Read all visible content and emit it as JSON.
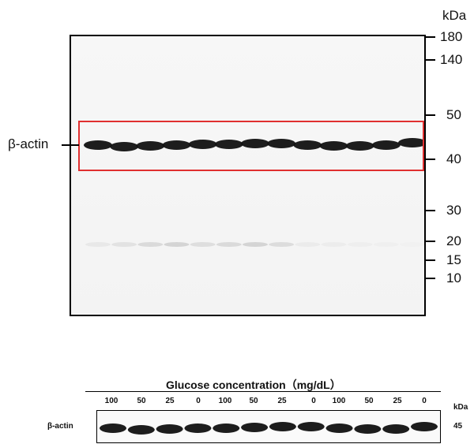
{
  "top_blot": {
    "unit": "kDa",
    "markers": [
      "180",
      "140",
      "50",
      "40",
      "30",
      "20",
      "15",
      "10"
    ],
    "target_label": "β-actin",
    "highlight_color": "#e03030"
  },
  "bottom_blot": {
    "title": "Glucose concentration（mg/dL）",
    "lanes": [
      "100",
      "50",
      "25",
      "0",
      "100",
      "50",
      "25",
      "0",
      "100",
      "50",
      "25",
      "0"
    ],
    "unit": "kDa",
    "target_label": "β-actin",
    "size_marker": "45"
  }
}
